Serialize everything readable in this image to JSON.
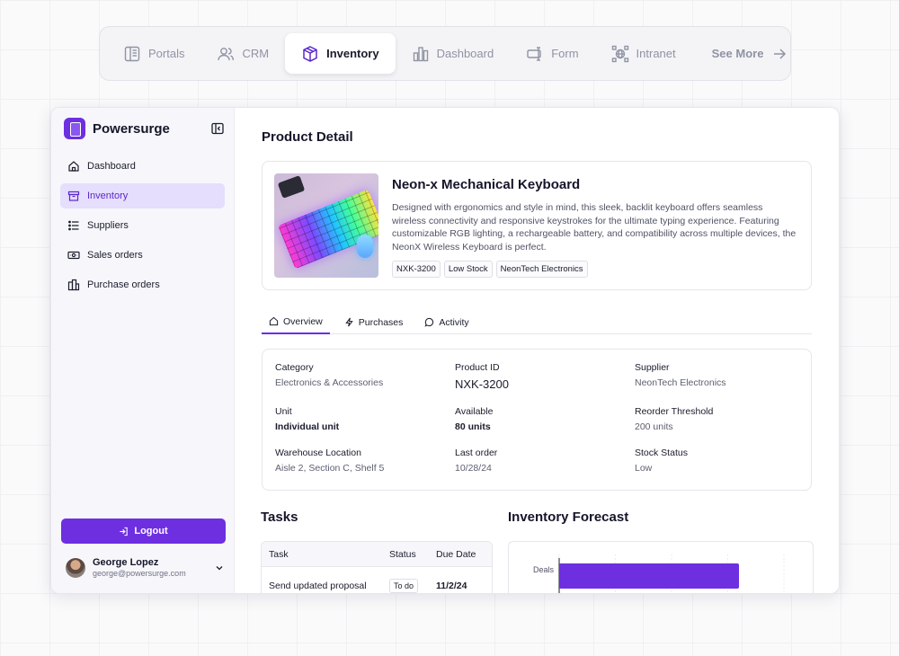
{
  "topnav": {
    "tabs": [
      {
        "label": "Portals",
        "icon": "portals-icon"
      },
      {
        "label": "CRM",
        "icon": "users-icon"
      },
      {
        "label": "Inventory",
        "icon": "box-icon",
        "active": true
      },
      {
        "label": "Dashboard",
        "icon": "chart-icon"
      },
      {
        "label": "Form",
        "icon": "form-icon"
      },
      {
        "label": "Intranet",
        "icon": "network-icon"
      }
    ],
    "see_more": "See More"
  },
  "sidebar": {
    "brand": "Powersurge",
    "items": [
      {
        "label": "Dashboard"
      },
      {
        "label": "Inventory",
        "active": true
      },
      {
        "label": "Suppliers"
      },
      {
        "label": "Sales orders"
      },
      {
        "label": "Purchase orders"
      }
    ],
    "logout": "Logout",
    "user": {
      "name": "George Lopez",
      "email": "george@powersurge.com"
    }
  },
  "main": {
    "title": "Product Detail",
    "product": {
      "name": "Neon-x Mechanical Keyboard",
      "description": "Designed with ergonomics and style in mind, this sleek, backlit keyboard offers seamless wireless connectivity and responsive keystrokes for the ultimate typing experience. Featuring customizable RGB lighting, a rechargeable battery, and compatibility across multiple devices, the NeonX Wireless Keyboard is perfect.",
      "tags": [
        "NXK-3200",
        "Low Stock",
        "NeonTech Electronics"
      ]
    },
    "tabs": [
      "Overview",
      "Purchases",
      "Activity"
    ],
    "details": {
      "category": {
        "label": "Category",
        "value": "Electronics & Accessories"
      },
      "product_id": {
        "label": "Product ID",
        "value": "NXK-3200"
      },
      "supplier": {
        "label": "Supplier",
        "value": "NeonTech Electronics"
      },
      "unit": {
        "label": "Unit",
        "value": "Individual unit"
      },
      "available": {
        "label": "Available",
        "value": "80 units"
      },
      "reorder": {
        "label": "Reorder Threshold",
        "value": "200 units"
      },
      "warehouse": {
        "label": "Warehouse Location",
        "value": "Aisle 2, Section C, Shelf 5"
      },
      "last_order": {
        "label": "Last order",
        "value": "10/28/24"
      },
      "stock_status": {
        "label": "Stock Status",
        "value": "Low"
      }
    },
    "tasks": {
      "title": "Tasks",
      "headers": [
        "Task",
        "Status",
        "Due Date"
      ],
      "rows": [
        {
          "task": "Send updated proposal",
          "status": "To do",
          "due": "11/2/24"
        }
      ]
    },
    "forecast": {
      "title": "Inventory Forecast"
    }
  },
  "chart_data": {
    "type": "bar",
    "orientation": "horizontal",
    "categories": [
      "Deals"
    ],
    "values": [
      80
    ],
    "xlim": [
      0,
      100
    ],
    "grid": true,
    "bar_color": "#6d2fe0"
  },
  "colors": {
    "accent": "#6d2fe0",
    "active_bg": "#e5defc"
  }
}
